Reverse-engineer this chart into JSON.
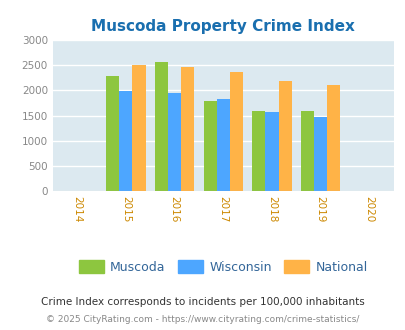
{
  "title": "Muscoda Property Crime Index",
  "title_color": "#1a6faf",
  "years": [
    2015,
    2016,
    2017,
    2018,
    2019
  ],
  "muscoda": [
    2280,
    2550,
    1790,
    1590,
    1590
  ],
  "wisconsin": [
    1980,
    1940,
    1820,
    1560,
    1470
  ],
  "national": [
    2500,
    2460,
    2360,
    2190,
    2100
  ],
  "bar_color_muscoda": "#8dc63f",
  "bar_color_wisconsin": "#4da6ff",
  "bar_color_national": "#ffb347",
  "background_color": "#dce9f0",
  "xlim": [
    2013.5,
    2020.5
  ],
  "ylim": [
    0,
    3000
  ],
  "yticks": [
    0,
    500,
    1000,
    1500,
    2000,
    2500,
    3000
  ],
  "xticks": [
    2014,
    2015,
    2016,
    2017,
    2018,
    2019,
    2020
  ],
  "bar_width": 0.27,
  "legend_labels": [
    "Muscoda",
    "Wisconsin",
    "National"
  ],
  "footnote1": "Crime Index corresponds to incidents per 100,000 inhabitants",
  "footnote2": "© 2025 CityRating.com - https://www.cityrating.com/crime-statistics/",
  "footnote1_color": "#333333",
  "footnote2_color": "#888888",
  "grid_color": "#ffffff",
  "ytick_color": "#888888",
  "xtick_color": "#cc8800"
}
